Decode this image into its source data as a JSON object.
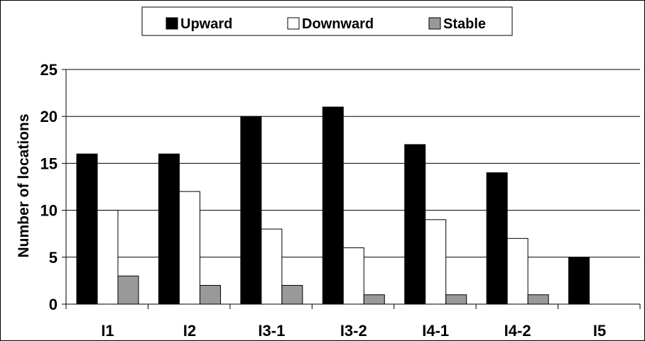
{
  "chart_data": {
    "type": "bar",
    "title": "",
    "xlabel": "",
    "ylabel": "Number of locations",
    "ylim": [
      0,
      25
    ],
    "yticks": [
      0,
      5,
      10,
      15,
      20,
      25
    ],
    "grid": true,
    "legend_position": "top",
    "categories": [
      "I1",
      "I2",
      "I3-1",
      "I3-2",
      "I4-1",
      "I4-2",
      "I5"
    ],
    "series": [
      {
        "name": "Upward",
        "color": "#000000",
        "values": [
          16,
          16,
          20,
          21,
          17,
          14,
          5
        ]
      },
      {
        "name": "Downward",
        "color": "#ffffff",
        "values": [
          10,
          12,
          8,
          6,
          9,
          7,
          0
        ]
      },
      {
        "name": "Stable",
        "color": "#999999",
        "values": [
          3,
          2,
          2,
          1,
          1,
          1,
          0
        ]
      }
    ]
  }
}
